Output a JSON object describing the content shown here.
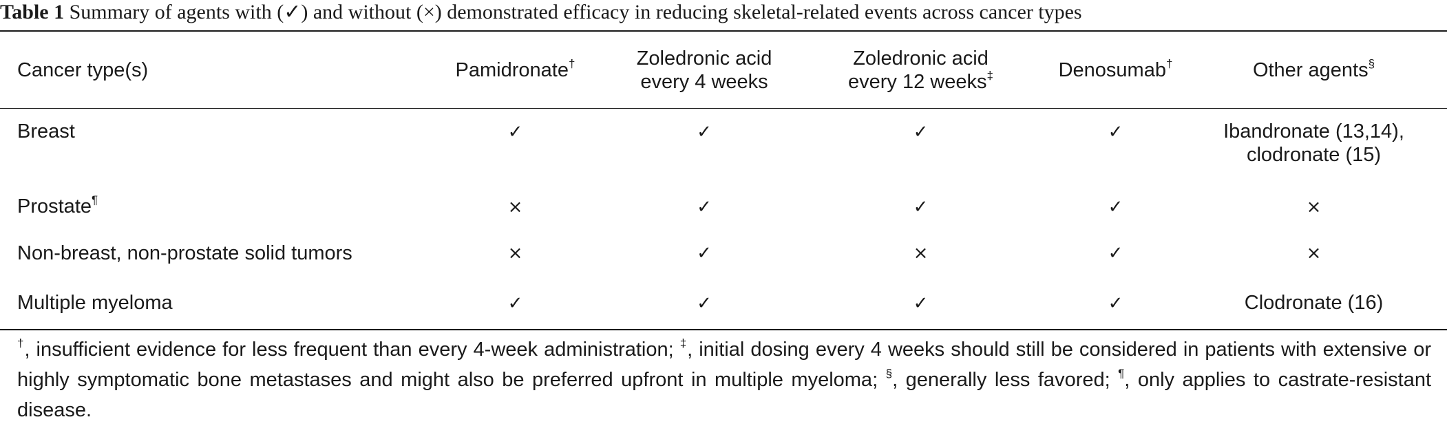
{
  "caption": {
    "label": "Table 1",
    "text": "Summary of agents with (✓) and without (×) demonstrated efficacy in reducing skeletal-related events across cancer types"
  },
  "header": {
    "cancer_type": "Cancer type(s)",
    "pamidronate": "Pamidronate",
    "pamidronate_sup": "†",
    "zol4_line1": "Zoledronic acid",
    "zol4_line2": "every 4 weeks",
    "zol12_line1": "Zoledronic acid",
    "zol12_line2": "every 12 weeks",
    "zol12_sup": "‡",
    "denosumab": "Denosumab",
    "denosumab_sup": "†",
    "other": "Other agents",
    "other_sup": "§"
  },
  "rows": [
    {
      "cancer": "Breast",
      "cancer_sup": "",
      "pamidronate": "✓",
      "zol4": "✓",
      "zol12": "✓",
      "denosumab": "✓",
      "other_line1": "Ibandronate (13,14),",
      "other_line2": "clodronate (15)"
    },
    {
      "cancer": "Prostate",
      "cancer_sup": "¶",
      "pamidronate": "×",
      "zol4": "✓",
      "zol12": "✓",
      "denosumab": "✓",
      "other_line1": "×",
      "other_line2": ""
    },
    {
      "cancer": "Non-breast, non-prostate solid tumors",
      "cancer_sup": "",
      "pamidronate": "×",
      "zol4": "✓",
      "zol12": "×",
      "denosumab": "✓",
      "other_line1": "×",
      "other_line2": ""
    },
    {
      "cancer": "Multiple myeloma",
      "cancer_sup": "",
      "pamidronate": "✓",
      "zol4": "✓",
      "zol12": "✓",
      "denosumab": "✓",
      "other_line1": "Clodronate (16)",
      "other_line2": ""
    }
  ],
  "footnote": {
    "sym1": "†",
    "text1": ", insufficient evidence for less frequent than every 4-week administration; ",
    "sym2": "‡",
    "text2": ", initial dosing every 4 weeks should still be considered in patients with extensive or highly symptomatic bone metastases and might also be preferred upfront in multiple myeloma; ",
    "sym3": "§",
    "text3": ", generally less favored; ",
    "sym4": "¶",
    "text4": ", only applies to castrate-resistant disease."
  }
}
